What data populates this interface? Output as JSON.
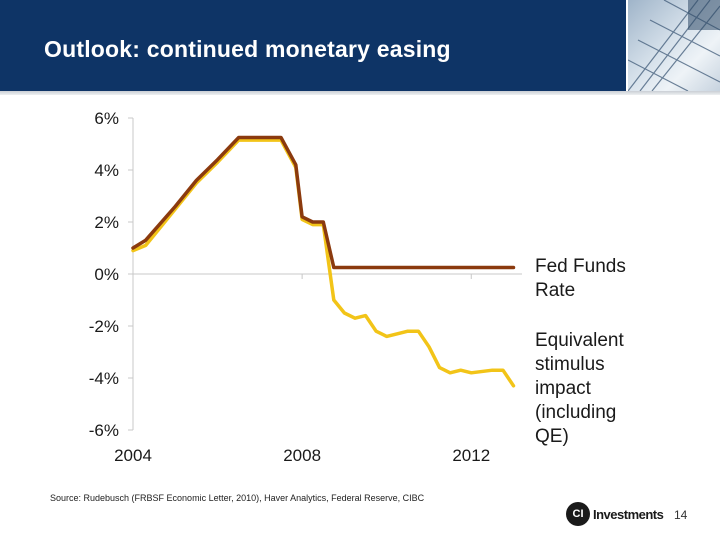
{
  "slide": {
    "title": "Outlook: continued monetary easing",
    "source": "Source: Rudebusch (FRBSF Economic Letter, 2010), Haver Analytics, Federal Reserve, CIBC",
    "page_number": "14",
    "logo": {
      "mark": "CI",
      "text": "Investments"
    }
  },
  "colors": {
    "header_bg": "#0e3466",
    "fed_funds": "#8b3a0e",
    "stimulus": "#f2c418",
    "axis": "#c8c8c8",
    "text": "#1a1a1a"
  },
  "chart_data": {
    "type": "line",
    "title": "",
    "xlabel": "",
    "ylabel": "",
    "xlim": [
      2004,
      2013.2
    ],
    "ylim": [
      -6,
      6
    ],
    "x_ticks": [
      2004,
      2008,
      2012
    ],
    "x_tick_labels": [
      "2004",
      "2008",
      "2012"
    ],
    "y_ticks": [
      6,
      4,
      2,
      0,
      -2,
      -4,
      -6
    ],
    "y_tick_labels": [
      "6%",
      "4%",
      "2%",
      "0%",
      "-2%",
      "-4%",
      "-6%"
    ],
    "series": [
      {
        "name": "Fed Funds Rate",
        "label_lines": [
          "Fed Funds",
          "Rate"
        ],
        "color": "#8b3a0e",
        "x": [
          2004.0,
          2004.3,
          2005.0,
          2005.5,
          2006.0,
          2006.5,
          2007.0,
          2007.5,
          2007.85,
          2008.0,
          2008.25,
          2008.5,
          2008.75,
          2013.0
        ],
        "y": [
          1.0,
          1.3,
          2.6,
          3.6,
          4.4,
          5.25,
          5.25,
          5.25,
          4.2,
          2.2,
          2.0,
          2.0,
          0.25,
          0.25
        ]
      },
      {
        "name": "Equivalent stimulus impact (including QE)",
        "label_lines": [
          "Equivalent",
          "stimulus",
          "impact",
          "(including",
          "QE)"
        ],
        "color": "#f2c418",
        "x": [
          2004.0,
          2004.3,
          2005.0,
          2005.5,
          2006.0,
          2006.5,
          2007.0,
          2007.5,
          2007.85,
          2008.0,
          2008.25,
          2008.5,
          2008.75,
          2009.0,
          2009.25,
          2009.5,
          2009.75,
          2010.0,
          2010.25,
          2010.5,
          2010.75,
          2011.0,
          2011.25,
          2011.5,
          2011.75,
          2012.0,
          2012.5,
          2012.75,
          2013.0
        ],
        "y": [
          0.9,
          1.1,
          2.5,
          3.5,
          4.3,
          5.15,
          5.15,
          5.15,
          4.1,
          2.1,
          1.9,
          1.9,
          -1.0,
          -1.5,
          -1.7,
          -1.6,
          -2.2,
          -2.4,
          -2.3,
          -2.2,
          -2.2,
          -2.8,
          -3.6,
          -3.8,
          -3.7,
          -3.8,
          -3.7,
          -3.7,
          -4.3
        ]
      }
    ],
    "grid": false
  }
}
